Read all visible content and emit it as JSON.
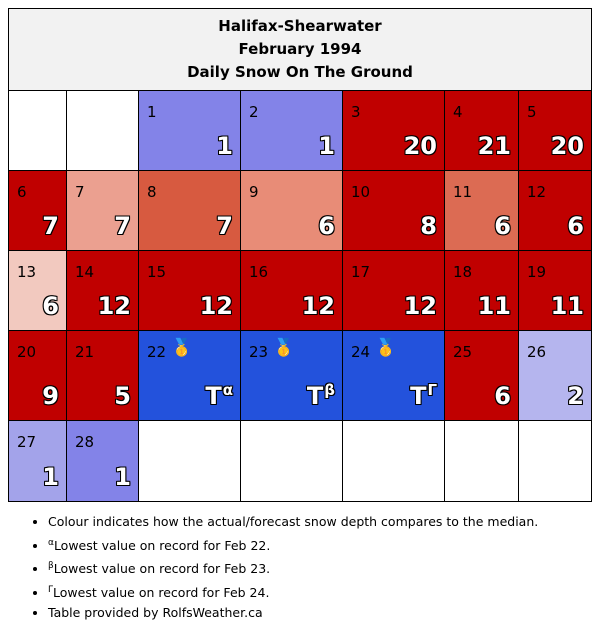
{
  "title": {
    "station": "Halifax-Shearwater",
    "month": "February 1994",
    "subtitle": "Daily Snow On The Ground"
  },
  "colors": {
    "below_median_strong": "#8383e8",
    "below_median_light": "#b5b5ee",
    "record_low": "#2352dc",
    "above_median_strong": "#c00000",
    "empty": "#ffffff"
  },
  "calendar": {
    "cells": [
      {
        "day": "",
        "value": "",
        "sup": "",
        "medal": "",
        "color": "#ffffff"
      },
      {
        "day": "",
        "value": "",
        "sup": "",
        "medal": "",
        "color": "#ffffff"
      },
      {
        "day": "1",
        "value": "1",
        "sup": "",
        "medal": "",
        "color": "#8383e8"
      },
      {
        "day": "2",
        "value": "1",
        "sup": "",
        "medal": "",
        "color": "#8383e8"
      },
      {
        "day": "3",
        "value": "20",
        "sup": "",
        "medal": "",
        "color": "#c00000"
      },
      {
        "day": "4",
        "value": "21",
        "sup": "",
        "medal": "",
        "color": "#c00000"
      },
      {
        "day": "5",
        "value": "20",
        "sup": "",
        "medal": "",
        "color": "#c00000"
      },
      {
        "day": "6",
        "value": "7",
        "sup": "",
        "medal": "",
        "color": "#c00000"
      },
      {
        "day": "7",
        "value": "7",
        "sup": "",
        "medal": "",
        "color": "#eba090"
      },
      {
        "day": "8",
        "value": "7",
        "sup": "",
        "medal": "",
        "color": "#d75a40"
      },
      {
        "day": "9",
        "value": "6",
        "sup": "",
        "medal": "",
        "color": "#e88c77"
      },
      {
        "day": "10",
        "value": "8",
        "sup": "",
        "medal": "",
        "color": "#c00000"
      },
      {
        "day": "11",
        "value": "6",
        "sup": "",
        "medal": "",
        "color": "#dc6b53"
      },
      {
        "day": "12",
        "value": "6",
        "sup": "",
        "medal": "",
        "color": "#c00000"
      },
      {
        "day": "13",
        "value": "6",
        "sup": "",
        "medal": "",
        "color": "#f2c9bf"
      },
      {
        "day": "14",
        "value": "12",
        "sup": "",
        "medal": "",
        "color": "#c00000"
      },
      {
        "day": "15",
        "value": "12",
        "sup": "",
        "medal": "",
        "color": "#c00000"
      },
      {
        "day": "16",
        "value": "12",
        "sup": "",
        "medal": "",
        "color": "#c00000"
      },
      {
        "day": "17",
        "value": "12",
        "sup": "",
        "medal": "",
        "color": "#c00000"
      },
      {
        "day": "18",
        "value": "11",
        "sup": "",
        "medal": "",
        "color": "#c00000"
      },
      {
        "day": "19",
        "value": "11",
        "sup": "",
        "medal": "",
        "color": "#c00000"
      },
      {
        "day": "20",
        "value": "9",
        "sup": "",
        "medal": "",
        "color": "#c00000"
      },
      {
        "day": "21",
        "value": "5",
        "sup": "",
        "medal": "",
        "color": "#c00000"
      },
      {
        "day": "22",
        "value": "T",
        "sup": "α",
        "medal": "🥇",
        "color": "#2352dc"
      },
      {
        "day": "23",
        "value": "T",
        "sup": "β",
        "medal": "🥇",
        "color": "#2352dc"
      },
      {
        "day": "24",
        "value": "T",
        "sup": "Γ",
        "medal": "🥇",
        "color": "#2352dc"
      },
      {
        "day": "25",
        "value": "6",
        "sup": "",
        "medal": "",
        "color": "#c00000"
      },
      {
        "day": "26",
        "value": "2",
        "sup": "",
        "medal": "",
        "color": "#b5b5ee"
      },
      {
        "day": "27",
        "value": "1",
        "sup": "",
        "medal": "",
        "color": "#a3a3ea"
      },
      {
        "day": "28",
        "value": "1",
        "sup": "",
        "medal": "",
        "color": "#8383e8"
      },
      {
        "day": "",
        "value": "",
        "sup": "",
        "medal": "",
        "color": "#ffffff"
      },
      {
        "day": "",
        "value": "",
        "sup": "",
        "medal": "",
        "color": "#ffffff"
      },
      {
        "day": "",
        "value": "",
        "sup": "",
        "medal": "",
        "color": "#ffffff"
      },
      {
        "day": "",
        "value": "",
        "sup": "",
        "medal": "",
        "color": "#ffffff"
      },
      {
        "day": "",
        "value": "",
        "sup": "",
        "medal": "",
        "color": "#ffffff"
      }
    ]
  },
  "notes": [
    {
      "sup": "",
      "text": "Colour indicates how the actual/forecast snow depth compares to the median."
    },
    {
      "sup": "α",
      "text": "Lowest value on record for Feb 22."
    },
    {
      "sup": "β",
      "text": "Lowest value on record for Feb 23."
    },
    {
      "sup": "Γ",
      "text": "Lowest value on record for Feb 24."
    },
    {
      "sup": "",
      "text": "Table provided by RolfsWeather.ca"
    }
  ]
}
